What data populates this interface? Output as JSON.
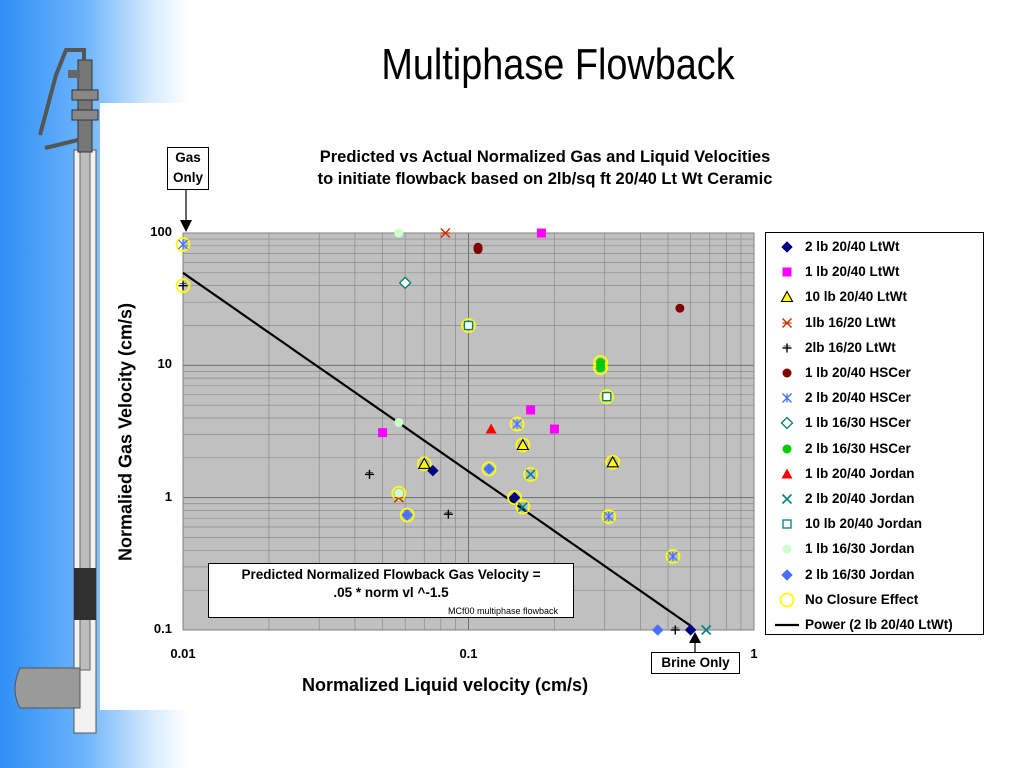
{
  "slide": {
    "title": "Multiphase Flowback"
  },
  "callouts": {
    "gas_only": [
      "Gas",
      "Only"
    ],
    "brine_only": "Brine Only",
    "formula": [
      "Predicted Normalized Flowback Gas Velocity =",
      ".05 * norm vl ^-1.5"
    ],
    "source_note": "MCf00 multiphase flowback"
  },
  "chart_data": {
    "type": "scatter",
    "title": [
      "Predicted vs Actual Normalized Gas and Liquid Velocities",
      "to initiate flowback based on 2lb/sq ft 20/40 Lt Wt Ceramic"
    ],
    "xlabel": "Normalized Liquid velocity (cm/s)",
    "ylabel": "Normalied Gas Velocity (cm/s)",
    "x_scale": "log",
    "y_scale": "log",
    "xlim": [
      0.01,
      1
    ],
    "ylim": [
      0.1,
      100
    ],
    "x_ticks": [
      {
        "v": 0.01,
        "label": "0.01"
      },
      {
        "v": 0.1,
        "label": "0.1"
      },
      {
        "v": 1,
        "label": "1"
      }
    ],
    "y_ticks": [
      {
        "v": 0.1,
        "label": "0.1"
      },
      {
        "v": 1,
        "label": "1"
      },
      {
        "v": 10,
        "label": "10"
      },
      {
        "v": 100,
        "label": "100"
      }
    ],
    "grid": true,
    "plot_background": "#c0c0c0",
    "legend_position": "right",
    "series": [
      {
        "name": "2 lb 20/40 LtWt",
        "marker": "diamond",
        "color": "#000080",
        "points": [
          [
            0.075,
            1.6
          ],
          [
            0.145,
            1.0
          ],
          [
            0.6,
            0.1
          ]
        ]
      },
      {
        "name": "1 lb 20/40 LtWt",
        "marker": "square",
        "color": "#ff00ff",
        "points": [
          [
            0.18,
            100
          ],
          [
            0.05,
            3.1
          ],
          [
            0.165,
            4.6
          ],
          [
            0.2,
            3.3
          ]
        ]
      },
      {
        "name": "10 lb 20/40 LtWt",
        "marker": "triangle-open",
        "color": "#ffff00",
        "points": [
          [
            0.07,
            1.8
          ],
          [
            0.155,
            2.5
          ],
          [
            0.32,
            1.85
          ]
        ]
      },
      {
        "name": "1lb 16/20 LtWt",
        "marker": "x-star",
        "color": "#cc3300",
        "points": [
          [
            0.083,
            100
          ],
          [
            0.057,
            1.0
          ]
        ]
      },
      {
        "name": "2lb 16/20 LtWt",
        "marker": "plus",
        "color": "#000000",
        "points": [
          [
            0.01,
            40
          ],
          [
            0.045,
            1.5
          ],
          [
            0.085,
            0.75
          ],
          [
            0.53,
            0.1
          ]
        ]
      },
      {
        "name": "1 lb 20/40 HSCer",
        "marker": "circle",
        "color": "#800000",
        "points": [
          [
            0.108,
            78
          ],
          [
            0.108,
            75
          ],
          [
            0.55,
            27
          ]
        ]
      },
      {
        "name": "2 lb 20/40 HSCer",
        "marker": "asterisk",
        "color": "#4472ff",
        "points": [
          [
            0.148,
            3.6
          ],
          [
            0.31,
            0.72
          ],
          [
            0.52,
            0.36
          ],
          [
            0.01,
            82
          ]
        ]
      },
      {
        "name": "1 lb 16/30 HSCer",
        "marker": "diamond-open",
        "color": "#008060",
        "points": [
          [
            0.06,
            42
          ]
        ]
      },
      {
        "name": "2 lb 16/30 HSCer",
        "marker": "circle",
        "color": "#00cc00",
        "points": [
          [
            0.29,
            10.5
          ],
          [
            0.29,
            9.6
          ]
        ]
      },
      {
        "name": "1 lb 20/40 Jordan",
        "marker": "triangle",
        "color": "#ff0000",
        "points": [
          [
            0.12,
            3.3
          ]
        ]
      },
      {
        "name": "2 lb 20/40 Jordan",
        "marker": "x",
        "color": "#008080",
        "points": [
          [
            0.165,
            1.5
          ],
          [
            0.155,
            0.85
          ],
          [
            0.68,
            0.1
          ]
        ]
      },
      {
        "name": "10 lb 20/40 Jordan",
        "marker": "square-open",
        "color": "#008080",
        "points": [
          [
            0.1,
            20
          ],
          [
            0.305,
            5.8
          ]
        ]
      },
      {
        "name": "1 lb 16/30 Jordan",
        "marker": "circle",
        "color": "#ccffcc",
        "points": [
          [
            0.057,
            100
          ],
          [
            0.057,
            3.7
          ],
          [
            0.057,
            1.08
          ]
        ]
      },
      {
        "name": "2 lb 16/30 Jordan",
        "marker": "diamond",
        "color": "#4472ff",
        "points": [
          [
            0.061,
            0.74
          ],
          [
            0.118,
            1.65
          ],
          [
            0.46,
            0.1
          ]
        ]
      },
      {
        "name": "No Closure Effect",
        "marker": "circle-open",
        "color": "#ffff00",
        "points": [
          [
            0.01,
            82
          ],
          [
            0.01,
            40
          ],
          [
            0.07,
            1.8
          ],
          [
            0.061,
            0.74
          ],
          [
            0.118,
            1.65
          ],
          [
            0.145,
            1.0
          ],
          [
            0.148,
            3.6
          ],
          [
            0.155,
            2.5
          ],
          [
            0.165,
            1.5
          ],
          [
            0.155,
            0.85
          ],
          [
            0.1,
            20
          ],
          [
            0.29,
            10.5
          ],
          [
            0.29,
            9.6
          ],
          [
            0.305,
            5.8
          ],
          [
            0.32,
            1.85
          ],
          [
            0.31,
            0.72
          ],
          [
            0.52,
            0.36
          ],
          [
            0.057,
            1.08
          ]
        ]
      }
    ],
    "trendline": {
      "name": "Power (2 lb 20/40 LtWt)",
      "color": "#000000",
      "coef": 0.05,
      "exponent": -1.5,
      "x_range": [
        0.01,
        0.6
      ]
    }
  }
}
